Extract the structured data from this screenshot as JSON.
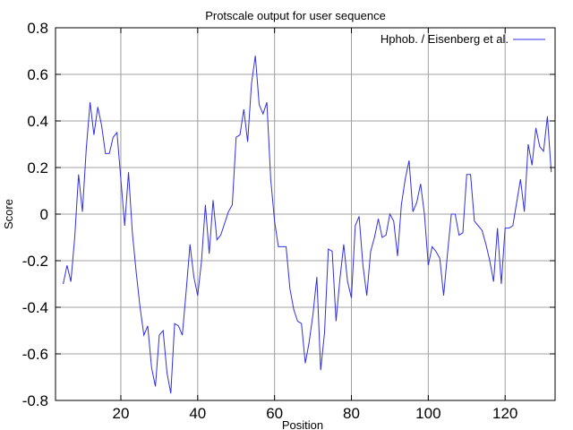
{
  "chart_data": {
    "type": "line",
    "title": "Protscale output for  user  sequence",
    "xlabel": "Position",
    "ylabel": "Score",
    "xlim": [
      3,
      133
    ],
    "ylim": [
      -0.8,
      0.8
    ],
    "xticks": [
      20,
      40,
      60,
      80,
      100,
      120
    ],
    "yticks": [
      0.8,
      0.6,
      0.4,
      0.2,
      0,
      -0.2,
      -0.4,
      -0.6,
      -0.8
    ],
    "ytick_labels": [
      "0.8",
      "0.6",
      "0.4",
      "0.2",
      "0",
      "-0.2",
      "-0.4",
      "-0.6",
      "-0.8"
    ],
    "grid": true,
    "legend_position": "top-right",
    "series": [
      {
        "name": "Hphob.   /  Eisenberg et al.",
        "color": "#3030e0",
        "x": [
          5,
          6,
          7,
          8,
          9,
          10,
          11,
          12,
          13,
          14,
          15,
          16,
          17,
          18,
          19,
          20,
          21,
          22,
          23,
          24,
          25,
          26,
          27,
          28,
          29,
          30,
          31,
          32,
          33,
          34,
          35,
          36,
          37,
          38,
          39,
          40,
          41,
          42,
          43,
          44,
          45,
          46,
          47,
          48,
          49,
          50,
          51,
          52,
          53,
          54,
          55,
          56,
          57,
          58,
          59,
          60,
          61,
          62,
          63,
          64,
          65,
          66,
          67,
          68,
          69,
          70,
          71,
          72,
          73,
          74,
          75,
          76,
          77,
          78,
          79,
          80,
          81,
          82,
          83,
          84,
          85,
          86,
          87,
          88,
          89,
          90,
          91,
          92,
          93,
          94,
          95,
          96,
          97,
          98,
          99,
          100,
          101,
          102,
          103,
          104,
          105,
          106,
          107,
          108,
          109,
          110,
          111,
          112,
          113,
          114,
          115,
          116,
          117,
          118,
          119,
          120,
          121,
          122,
          123,
          124,
          125,
          126,
          127,
          128,
          129,
          130,
          131,
          132
        ],
        "values": [
          -0.3,
          -0.22,
          -0.29,
          -0.1,
          0.17,
          0.01,
          0.28,
          0.48,
          0.34,
          0.46,
          0.38,
          0.26,
          0.26,
          0.33,
          0.35,
          0.15,
          -0.05,
          0.18,
          -0.08,
          -0.25,
          -0.4,
          -0.52,
          -0.48,
          -0.66,
          -0.74,
          -0.52,
          -0.5,
          -0.68,
          -0.77,
          -0.47,
          -0.48,
          -0.52,
          -0.33,
          -0.13,
          -0.27,
          -0.35,
          -0.2,
          0.04,
          -0.17,
          0.06,
          -0.11,
          -0.09,
          -0.04,
          0.01,
          0.04,
          0.33,
          0.34,
          0.45,
          0.31,
          0.56,
          0.68,
          0.47,
          0.43,
          0.48,
          0.15,
          -0.03,
          -0.14,
          -0.14,
          -0.14,
          -0.32,
          -0.41,
          -0.46,
          -0.47,
          -0.64,
          -0.55,
          -0.43,
          -0.27,
          -0.67,
          -0.51,
          -0.15,
          -0.16,
          -0.46,
          -0.28,
          -0.13,
          -0.29,
          -0.36,
          -0.05,
          -0.01,
          -0.22,
          -0.35,
          -0.16,
          -0.1,
          -0.02,
          -0.1,
          -0.09,
          0.0,
          -0.03,
          -0.18,
          0.04,
          0.15,
          0.23,
          0.01,
          0.05,
          0.13,
          0.0,
          -0.22,
          -0.14,
          -0.16,
          -0.19,
          -0.35,
          -0.17,
          0.0,
          0.0,
          -0.09,
          -0.08,
          0.17,
          0.17,
          -0.03,
          -0.05,
          -0.07,
          -0.13,
          -0.2,
          -0.29,
          -0.06,
          -0.3,
          -0.06,
          -0.06,
          -0.05,
          0.05,
          0.15,
          0.01,
          0.3,
          0.21,
          0.37,
          0.29,
          0.27,
          0.42,
          0.18
        ]
      }
    ]
  }
}
